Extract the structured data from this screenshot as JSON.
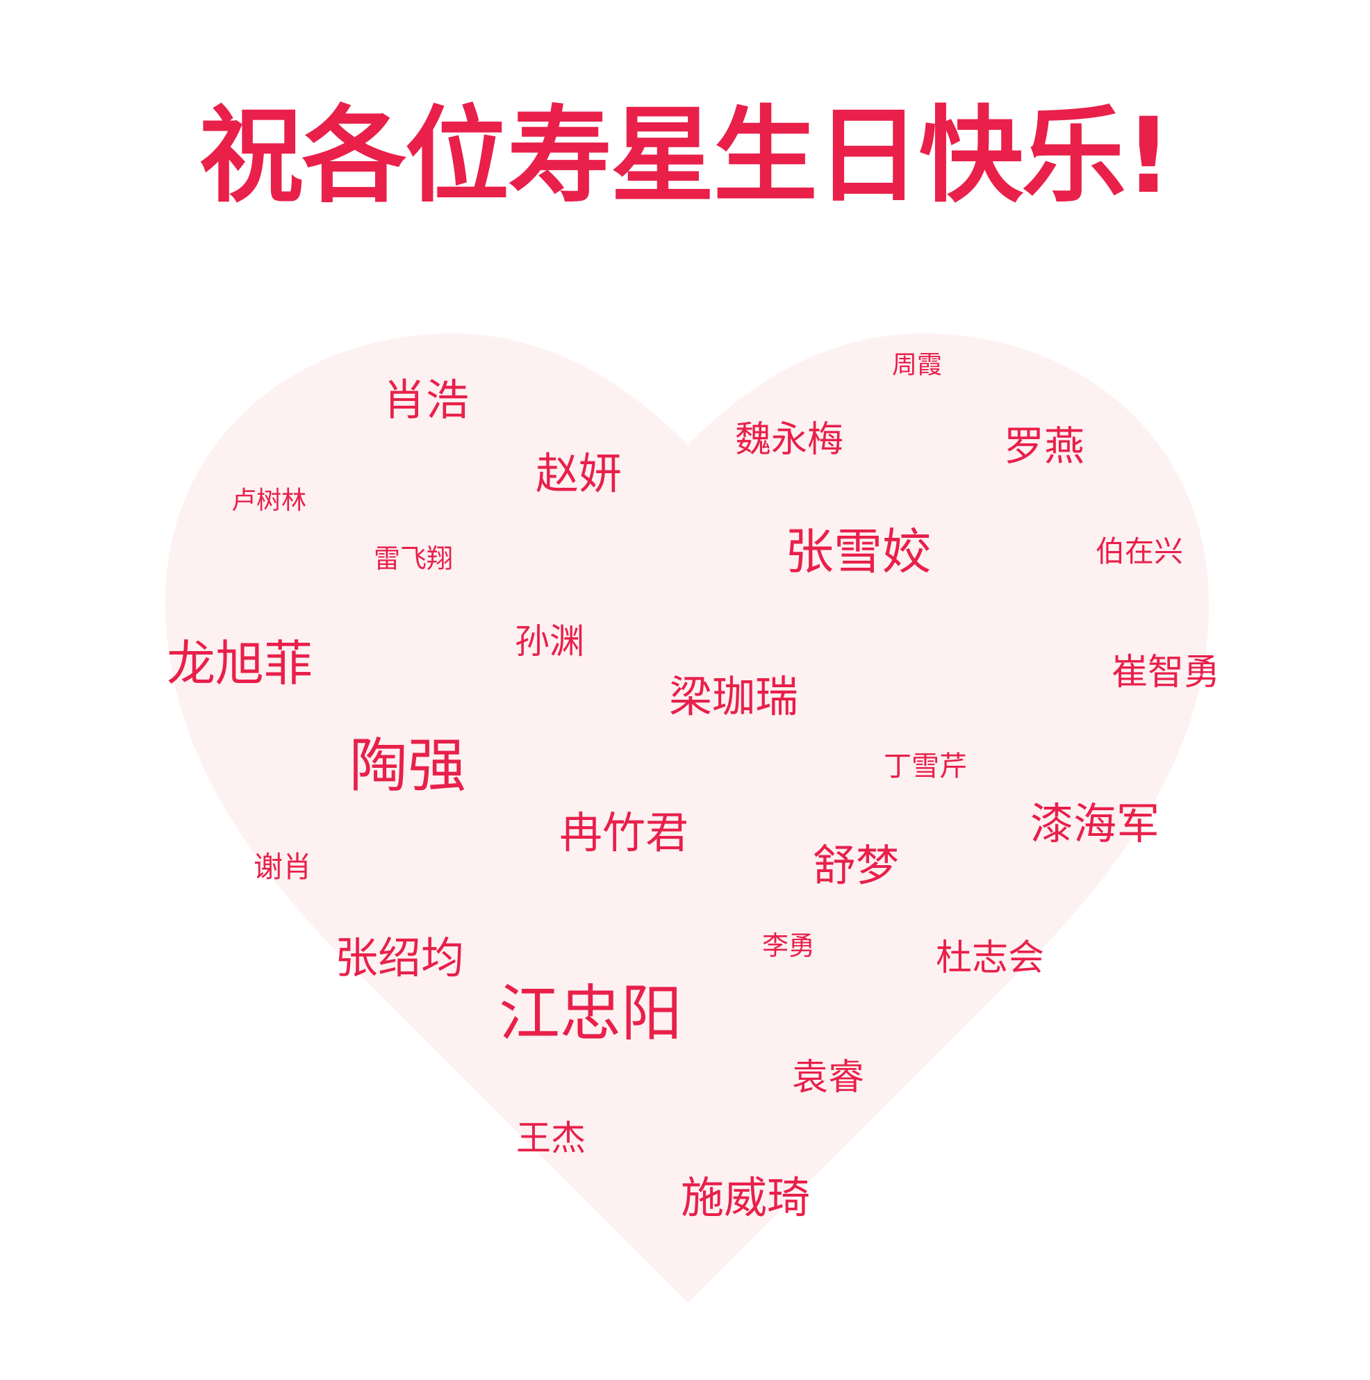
{
  "title": "祝各位寿星生日快乐!",
  "colors": {
    "accent": "#e8204a",
    "heart_fill": "#fdf1f2",
    "background": "#ffffff"
  },
  "names": [
    "周霞",
    "肖浩",
    "魏永梅",
    "罗燕",
    "赵妍",
    "卢树林",
    "雷飞翔",
    "张雪姣",
    "伯在兴",
    "孙渊",
    "龙旭菲",
    "崔智勇",
    "梁珈瑞",
    "陶强",
    "丁雪芹",
    "漆海军",
    "冉竹君",
    "舒梦",
    "谢肖",
    "李勇",
    "杜志会",
    "张绍均",
    "江忠阳",
    "袁睿",
    "王杰",
    "施威琦"
  ]
}
